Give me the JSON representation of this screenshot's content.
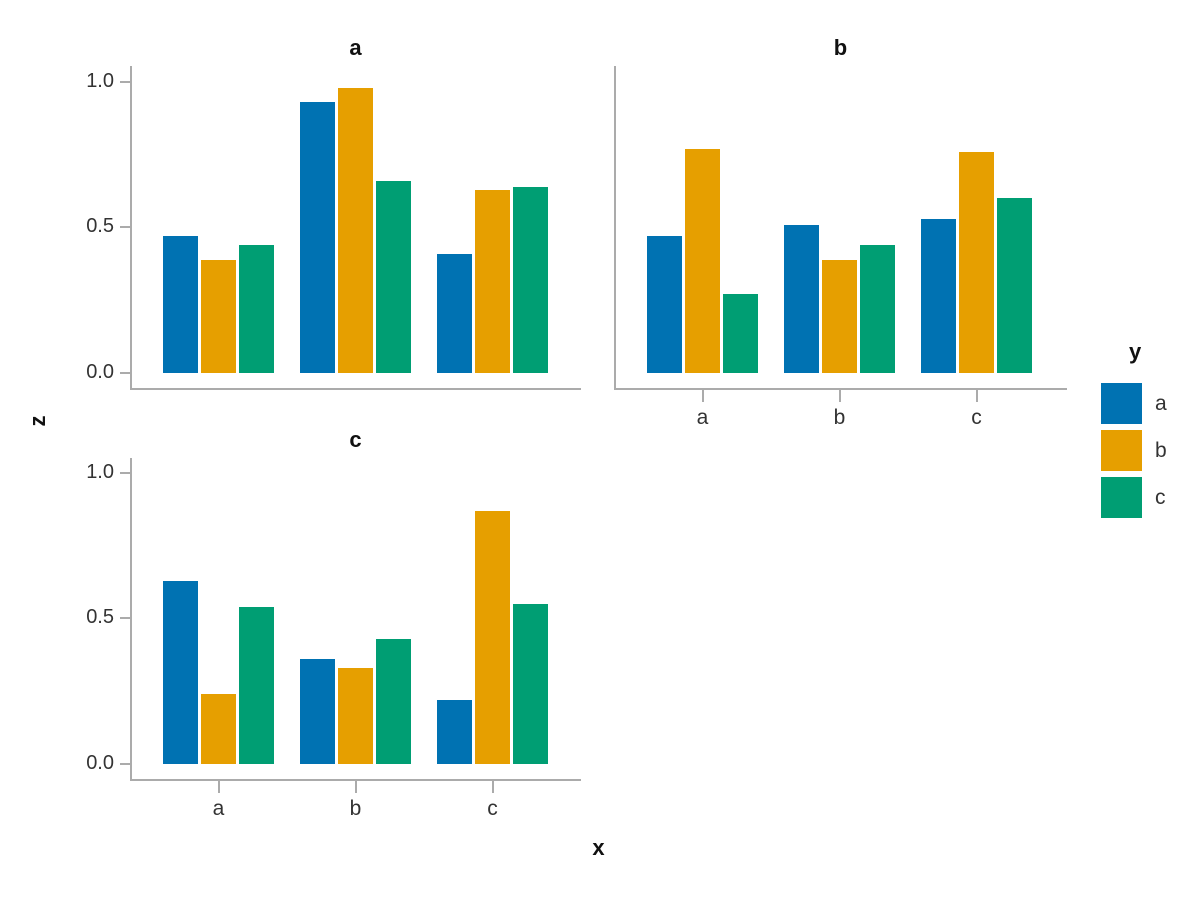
{
  "figure": {
    "background": "#FFFFFF",
    "spine_color": "#ABABAB",
    "text_color": "#111111",
    "tick_label_color": "#333333"
  },
  "chart_data": {
    "type": "bar",
    "layout": "faceted grouped bar chart, 3 panels in 2x2 grid, legend right",
    "xlabel": "x",
    "ylabel": "z",
    "x_categories": [
      "a",
      "b",
      "c"
    ],
    "ylim": [
      0,
      1.05
    ],
    "yticks": [
      0,
      0.5,
      1
    ],
    "ytick_labels": [
      "0.0",
      "0.5",
      "1.0"
    ],
    "grid": "off",
    "legend": {
      "title": "y",
      "position": "right",
      "entries": [
        "a",
        "b",
        "c"
      ]
    },
    "series_colors": {
      "a": "#0072B2",
      "b": "#E69F00",
      "c": "#009E73"
    },
    "facets": [
      {
        "title": "a",
        "series": [
          {
            "name": "a",
            "values": [
              0.47,
              0.93,
              0.41
            ]
          },
          {
            "name": "b",
            "values": [
              0.39,
              0.98,
              0.63
            ]
          },
          {
            "name": "c",
            "values": [
              0.44,
              0.66,
              0.64
            ]
          }
        ]
      },
      {
        "title": "b",
        "series": [
          {
            "name": "a",
            "values": [
              0.47,
              0.51,
              0.53
            ]
          },
          {
            "name": "b",
            "values": [
              0.77,
              0.39,
              0.76
            ]
          },
          {
            "name": "c",
            "values": [
              0.27,
              0.44,
              0.6
            ]
          }
        ]
      },
      {
        "title": "c",
        "series": [
          {
            "name": "a",
            "values": [
              0.63,
              0.36,
              0.22
            ]
          },
          {
            "name": "b",
            "values": [
              0.24,
              0.33,
              0.87
            ]
          },
          {
            "name": "c",
            "values": [
              0.54,
              0.43,
              0.55
            ]
          }
        ]
      }
    ]
  }
}
